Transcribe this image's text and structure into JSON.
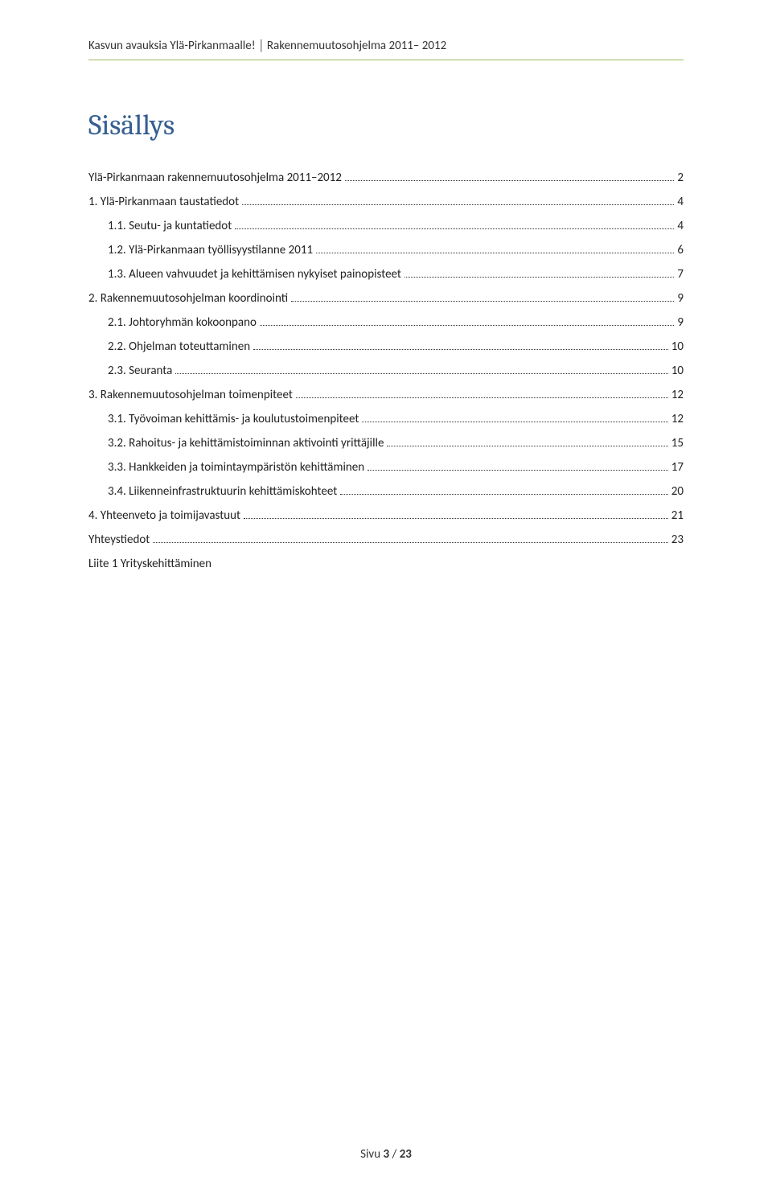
{
  "header": {
    "left": "Kasvun avauksia Ylä-Pirkanmaalle!",
    "separator": "│",
    "right": "Rakennemuutosohjelma 2011– 2012"
  },
  "toc_title": "Sisällys",
  "toc": [
    {
      "level": 0,
      "label": "Ylä-Pirkanmaan rakennemuutosohjelma 2011–2012",
      "page": "2"
    },
    {
      "level": 0,
      "label": "1. Ylä-Pirkanmaan taustatiedot",
      "page": "4"
    },
    {
      "level": 1,
      "label": "1.1. Seutu- ja kuntatiedot",
      "page": "4"
    },
    {
      "level": 1,
      "label": "1.2. Ylä-Pirkanmaan työllisyystilanne 2011",
      "page": "6"
    },
    {
      "level": 1,
      "label": "1.3. Alueen vahvuudet ja kehittämisen nykyiset painopisteet",
      "page": "7"
    },
    {
      "level": 0,
      "label": "2. Rakennemuutosohjelman koordinointi",
      "page": "9"
    },
    {
      "level": 1,
      "label": "2.1. Johtoryhmän kokoonpano",
      "page": "9"
    },
    {
      "level": 1,
      "label": "2.2. Ohjelman toteuttaminen",
      "page": "10"
    },
    {
      "level": 1,
      "label": "2.3. Seuranta",
      "page": "10"
    },
    {
      "level": 0,
      "label": "3. Rakennemuutosohjelman toimenpiteet",
      "page": "12"
    },
    {
      "level": 1,
      "label": "3.1. Työvoiman kehittämis- ja koulutustoimenpiteet",
      "page": "12"
    },
    {
      "level": 1,
      "label": "3.2. Rahoitus- ja kehittämistoiminnan aktivointi yrittäjille",
      "page": "15"
    },
    {
      "level": 1,
      "label": "3.3. Hankkeiden ja toimintaympäristön kehittäminen",
      "page": "17"
    },
    {
      "level": 1,
      "label": "3.4. Liikenneinfrastruktuurin kehittämiskohteet",
      "page": "20"
    },
    {
      "level": 0,
      "label": "4. Yhteenveto ja toimijavastuut",
      "page": "21"
    },
    {
      "level": 0,
      "label": "Yhteystiedot",
      "page": "23"
    },
    {
      "level": 0,
      "label": "Liite 1 Yrityskehittäminen",
      "page": ""
    }
  ],
  "footer": {
    "label": "Sivu",
    "current": "3",
    "sep": "/",
    "total": "23"
  },
  "colors": {
    "heading": "#365f91",
    "rule": "#9bbb59",
    "text": "#333333",
    "background": "#ffffff"
  }
}
